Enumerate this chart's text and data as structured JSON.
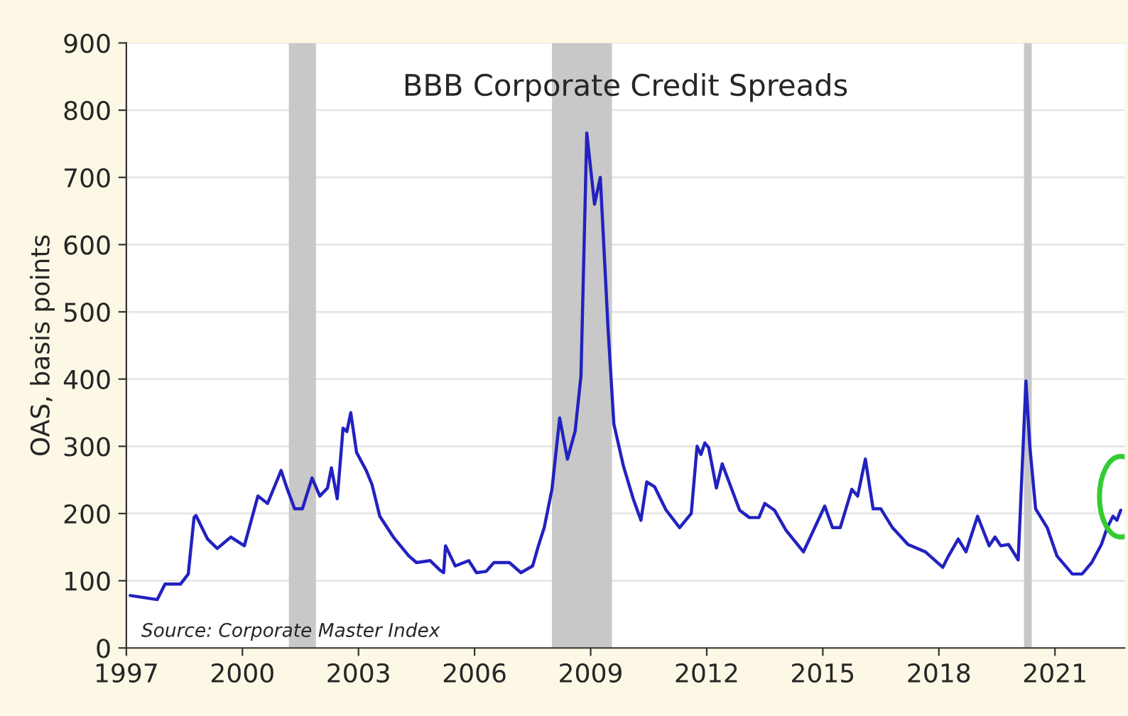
{
  "chart_data": {
    "type": "line",
    "title": "BBB Corporate Credit Spreads",
    "ylabel": "OAS, basis points",
    "annotations": [
      "Source: Corporate Master Index"
    ],
    "x": [
      1997.1,
      1997.8,
      1998.0,
      1998.4,
      1998.6,
      1998.75,
      1998.8,
      1999.1,
      1999.35,
      1999.7,
      2000.05,
      2000.4,
      2000.65,
      2001.0,
      2001.15,
      2001.35,
      2001.55,
      2001.8,
      2002.0,
      2002.2,
      2002.3,
      2002.45,
      2002.55,
      2002.6,
      2002.7,
      2002.8,
      2002.95,
      2003.2,
      2003.35,
      2003.55,
      2003.9,
      2004.3,
      2004.5,
      2004.85,
      2005.1,
      2005.2,
      2005.25,
      2005.5,
      2005.85,
      2006.05,
      2006.3,
      2006.5,
      2006.9,
      2007.2,
      2007.5,
      2007.65,
      2007.8,
      2008.0,
      2008.2,
      2008.4,
      2008.6,
      2008.75,
      2008.9,
      2009.1,
      2009.25,
      2009.45,
      2009.6,
      2009.85,
      2010.1,
      2010.3,
      2010.45,
      2010.65,
      2010.95,
      2011.3,
      2011.6,
      2011.75,
      2011.85,
      2011.95,
      2012.05,
      2012.25,
      2012.4,
      2012.85,
      2013.1,
      2013.35,
      2013.5,
      2013.75,
      2014.05,
      2014.5,
      2015.05,
      2015.25,
      2015.45,
      2015.75,
      2015.9,
      2016.1,
      2016.3,
      2016.5,
      2016.8,
      2017.2,
      2017.65,
      2018.1,
      2018.25,
      2018.5,
      2018.7,
      2019.0,
      2019.3,
      2019.45,
      2019.6,
      2019.8,
      2020.05,
      2020.15,
      2020.25,
      2020.35,
      2020.5,
      2020.8,
      2021.05,
      2021.45,
      2021.7,
      2021.95,
      2022.2,
      2022.35,
      2022.5,
      2022.6,
      2022.7
    ],
    "series": [
      {
        "color": "#2222c0",
        "values": [
          78,
          72,
          95,
          95,
          110,
          194,
          197,
          162,
          148,
          165,
          152,
          226,
          215,
          264,
          238,
          207,
          207,
          253,
          226,
          238,
          268,
          222,
          291,
          327,
          322,
          350,
          291,
          264,
          243,
          196,
          165,
          137,
          127,
          130,
          116,
          112,
          152,
          122,
          130,
          112,
          114,
          127,
          127,
          112,
          122,
          152,
          179,
          236,
          342,
          281,
          323,
          405,
          766,
          660,
          700,
          475,
          333,
          270,
          222,
          190,
          247,
          240,
          205,
          179,
          200,
          300,
          288,
          305,
          298,
          238,
          274,
          205,
          194,
          194,
          215,
          205,
          175,
          143,
          211,
          179,
          179,
          236,
          226,
          281,
          207,
          207,
          179,
          154,
          143,
          120,
          137,
          162,
          143,
          196,
          152,
          165,
          152,
          154,
          131,
          264,
          397,
          300,
          207,
          179,
          137,
          110,
          110,
          127,
          154,
          179,
          196,
          190,
          205
        ]
      }
    ],
    "xlim": [
      1997,
      2022.8
    ],
    "xticks": [
      1997,
      2000,
      2003,
      2006,
      2009,
      2012,
      2015,
      2018,
      2021
    ],
    "ylim": [
      0,
      900
    ],
    "yticks": [
      0,
      100,
      200,
      300,
      400,
      500,
      600,
      700,
      800,
      900
    ],
    "grid": "y",
    "bands": [
      {
        "axis": "x",
        "from": 2001.2,
        "to": 2001.9,
        "color": "#c8c8c8"
      },
      {
        "axis": "x",
        "from": 2008.0,
        "to": 2009.55,
        "color": "#c8c8c8"
      },
      {
        "axis": "x",
        "from": 2020.2,
        "to": 2020.4,
        "color": "#c8c8c8"
      }
    ]
  }
}
